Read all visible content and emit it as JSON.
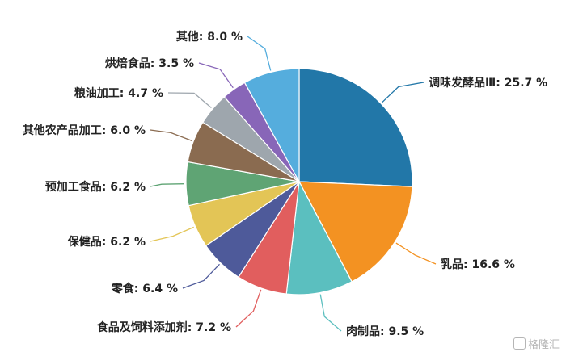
{
  "chart_data": {
    "type": "pie",
    "title": "",
    "start_angle_deg": 0,
    "direction": "clockwise",
    "unit_suffix": " %",
    "slices": [
      {
        "label": "调味发酵品Ⅲ",
        "value": 25.7,
        "color": "#2277a8",
        "display": "25.7"
      },
      {
        "label": "乳品",
        "value": 16.6,
        "color": "#f39222",
        "display": "16.6"
      },
      {
        "label": "肉制品",
        "value": 9.5,
        "color": "#5bbfbf",
        "display": "9.5"
      },
      {
        "label": "食品及饲料添加剂",
        "value": 7.2,
        "color": "#e15e5e",
        "display": "7.2"
      },
      {
        "label": "零食",
        "value": 6.4,
        "color": "#4e5a9a",
        "display": "6.4"
      },
      {
        "label": "保健品",
        "value": 6.2,
        "color": "#e3c556",
        "display": "6.2"
      },
      {
        "label": "预加工食品",
        "value": 6.2,
        "color": "#5fa474",
        "display": "6.2"
      },
      {
        "label": "其他农产品加工",
        "value": 6.0,
        "color": "#8a6b50",
        "display": "6.0"
      },
      {
        "label": "粮油加工",
        "value": 4.7,
        "color": "#9ea6ad",
        "display": "4.7"
      },
      {
        "label": "烘焙食品",
        "value": 3.5,
        "color": "#8866b8",
        "display": "3.5"
      },
      {
        "label": "其他",
        "value": 8.0,
        "color": "#55addd",
        "display": "8.0"
      }
    ]
  },
  "watermark": {
    "text": "格隆汇"
  }
}
